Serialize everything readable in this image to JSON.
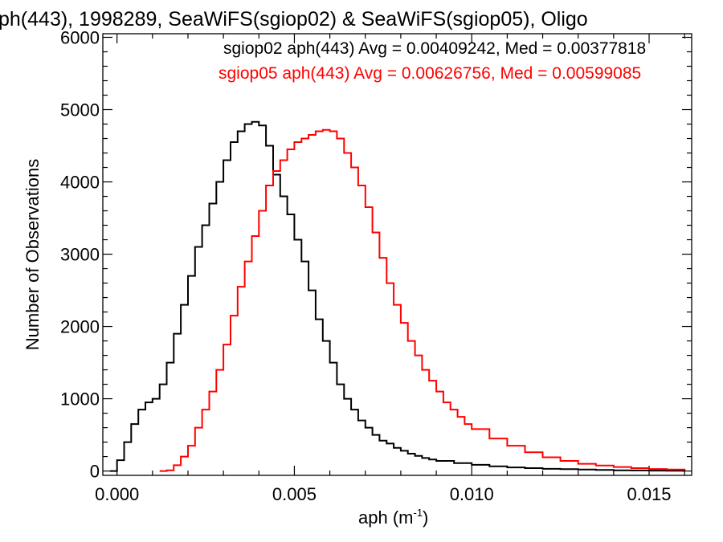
{
  "chart_data": {
    "type": "line",
    "title": "ph(443), 1998289, SeaWiFS(sgiop02) & SeaWiFS(sgiop05), Oligo",
    "xlabel": "aph (m",
    "xlabel_sup": "-1",
    "xlabel_end": ")",
    "ylabel": "Number of Observations",
    "xlim": [
      -0.0004,
      0.0162
    ],
    "ylim": [
      -60,
      6050
    ],
    "xticks": [
      0.0,
      0.005,
      0.01,
      0.015
    ],
    "xtick_labels": [
      "0.000",
      "0.005",
      "0.010",
      "0.015"
    ],
    "yticks": [
      0,
      1000,
      2000,
      3000,
      4000,
      5000,
      6000
    ],
    "ytick_labels": [
      "0",
      "1000",
      "2000",
      "3000",
      "4000",
      "5000",
      "6000"
    ],
    "grid": false,
    "series": [
      {
        "name": "sgiop02",
        "color": "#000000",
        "annotation": "sgiop02 aph(443) Avg = 0.00409242, Med = 0.00377818",
        "x": [
          -0.0002,
          0.0,
          0.0002,
          0.0004,
          0.0006,
          0.0008,
          0.001,
          0.0012,
          0.0014,
          0.0016,
          0.0018,
          0.002,
          0.0022,
          0.0024,
          0.0026,
          0.0028,
          0.003,
          0.0032,
          0.0034,
          0.0036,
          0.0038,
          0.004,
          0.0042,
          0.0044,
          0.0046,
          0.0048,
          0.005,
          0.0052,
          0.0054,
          0.0056,
          0.0058,
          0.006,
          0.0062,
          0.0064,
          0.0066,
          0.0068,
          0.007,
          0.0072,
          0.0074,
          0.0076,
          0.0078,
          0.008,
          0.0082,
          0.0084,
          0.0086,
          0.0088,
          0.009,
          0.0095,
          0.01,
          0.0105,
          0.011,
          0.0115,
          0.012,
          0.0125,
          0.013,
          0.0135,
          0.014,
          0.0145,
          0.015,
          0.0155,
          0.016
        ],
        "y": [
          0,
          150,
          400,
          650,
          850,
          950,
          1000,
          1200,
          1500,
          1900,
          2300,
          2700,
          3100,
          3400,
          3700,
          4000,
          4300,
          4550,
          4700,
          4800,
          4830,
          4780,
          4500,
          4100,
          3800,
          3550,
          3200,
          2900,
          2500,
          2100,
          1800,
          1500,
          1200,
          1000,
          850,
          700,
          600,
          500,
          420,
          380,
          320,
          280,
          240,
          210,
          180,
          160,
          140,
          110,
          85,
          65,
          50,
          40,
          30,
          25,
          20,
          15,
          10,
          8,
          5,
          3,
          2
        ]
      },
      {
        "name": "sgiop05",
        "color": "#ff0000",
        "annotation": "sgiop05 aph(443) Avg = 0.00626756, Med = 0.00599085",
        "x": [
          0.0012,
          0.0014,
          0.0016,
          0.0018,
          0.002,
          0.0022,
          0.0024,
          0.0026,
          0.0028,
          0.003,
          0.0032,
          0.0034,
          0.0036,
          0.0038,
          0.004,
          0.0042,
          0.0044,
          0.0046,
          0.0048,
          0.005,
          0.0052,
          0.0054,
          0.0056,
          0.0058,
          0.006,
          0.0062,
          0.0064,
          0.0066,
          0.0068,
          0.007,
          0.0072,
          0.0074,
          0.0076,
          0.0078,
          0.008,
          0.0082,
          0.0084,
          0.0086,
          0.0088,
          0.009,
          0.0092,
          0.0094,
          0.0096,
          0.0098,
          0.01,
          0.0105,
          0.011,
          0.0115,
          0.012,
          0.0125,
          0.013,
          0.0135,
          0.014,
          0.0145,
          0.015,
          0.0155,
          0.016
        ],
        "y": [
          0,
          10,
          80,
          200,
          350,
          600,
          850,
          1100,
          1400,
          1750,
          2150,
          2550,
          2900,
          3250,
          3600,
          3950,
          4150,
          4300,
          4450,
          4550,
          4600,
          4650,
          4700,
          4720,
          4700,
          4600,
          4400,
          4200,
          3950,
          3650,
          3300,
          2950,
          2600,
          2300,
          2050,
          1800,
          1600,
          1400,
          1250,
          1100,
          950,
          850,
          750,
          650,
          580,
          450,
          350,
          260,
          190,
          140,
          100,
          75,
          55,
          40,
          28,
          20,
          12
        ]
      }
    ]
  }
}
